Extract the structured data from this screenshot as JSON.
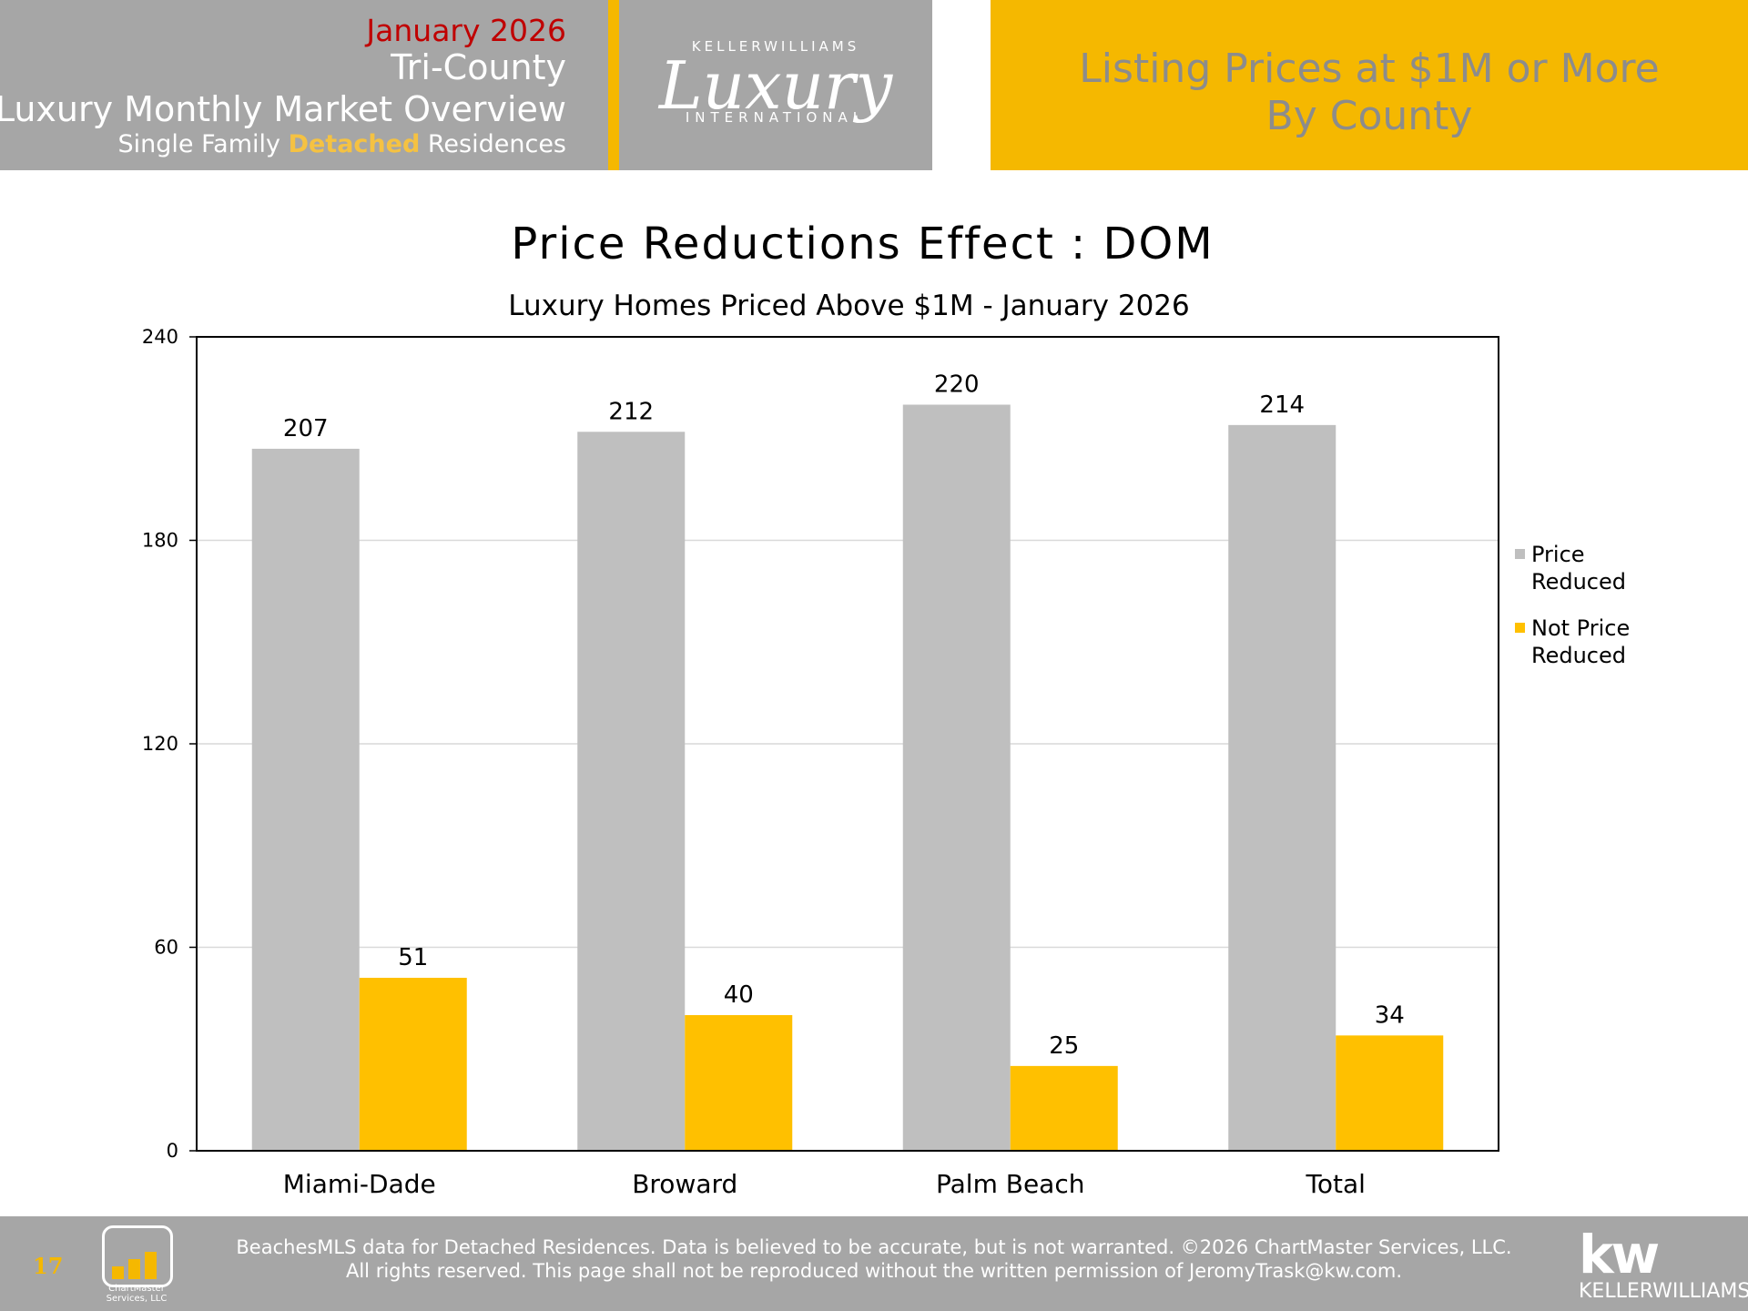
{
  "header": {
    "date": "January 2026",
    "region": "Tri-County",
    "report_title": "Luxury Monthly Market Overview",
    "subtitle_pre": "Single Family ",
    "subtitle_accent": "Detached",
    "subtitle_post": " Residences",
    "logo_top": "KELLERWILLIAMS",
    "logo_main": "Luxury",
    "logo_bottom": "INTERNATIONAL",
    "section_line1": "Listing Prices at $1M or More",
    "section_line2": "By County"
  },
  "colors": {
    "price_reduced": "#bfbfbf",
    "not_price_reduced": "#ffc000",
    "brand_gold": "#f5b800",
    "header_gray": "#a6a6a6"
  },
  "chart_data": {
    "type": "bar",
    "title": "Price Reductions Effect : DOM",
    "subtitle": "Luxury Homes Priced Above $1M - January 2026",
    "categories": [
      "Miami-Dade",
      "Broward",
      "Palm Beach",
      "Total"
    ],
    "series": [
      {
        "name": "Price Reduced",
        "values": [
          207,
          212,
          220,
          214
        ]
      },
      {
        "name": "Not Price Reduced",
        "values": [
          51,
          40,
          25,
          34
        ]
      }
    ],
    "y_ticks": [
      "0",
      "60",
      "120",
      "180",
      "240"
    ],
    "ylim": [
      0,
      240
    ],
    "grid": true,
    "legend_position": "right",
    "legend": [
      {
        "line1": "Price",
        "line2": "Reduced"
      },
      {
        "line1": "Not Price",
        "line2": "Reduced"
      }
    ]
  },
  "footer": {
    "page_number": "17",
    "chartmaster_logo_text": "ChartMaster Services, LLC",
    "disclaimer_line1": "BeachesMLS data for Detached Residences.  Data is believed to be accurate, but is not warranted.   ©2026  ChartMaster Services, LLC.",
    "disclaimer_line2": "All rights reserved. This page shall not be reproduced without the written permission of JeromyTrask@kw.com.",
    "kw_logo": "kw",
    "kw_text": "KELLERWILLIAMS."
  }
}
